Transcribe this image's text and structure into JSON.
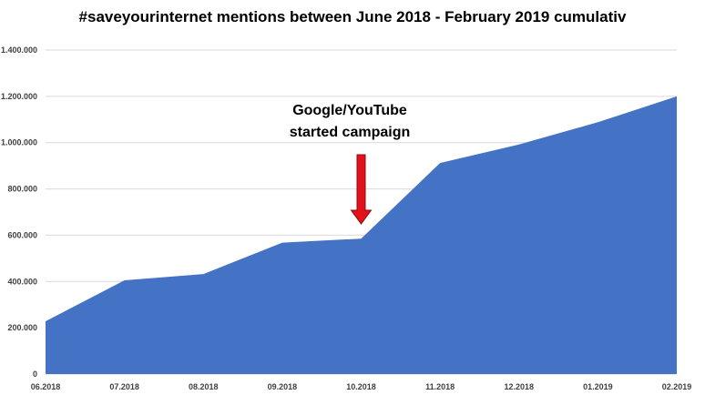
{
  "chart_data": {
    "type": "area",
    "title": "#saveyourinternet mentions between June 2018 - February 2019 cumulativ",
    "categories": [
      "06.2018",
      "07.2018",
      "08.2018",
      "09.2018",
      "10.2018",
      "11.2018",
      "12.2018",
      "01.2019",
      "02.2019"
    ],
    "series": [
      {
        "values": [
          228000,
          405000,
          432000,
          568000,
          585000,
          912000,
          992000,
          1088000,
          1200000
        ]
      }
    ],
    "y_ticks": [
      "0",
      "200.000",
      "400.000",
      "600.000",
      "800.000",
      "1.000.000",
      "1.200.000",
      "1.400.000"
    ],
    "ylim": [
      0,
      1400000
    ],
    "grid": true,
    "fill_color": "#4472C4",
    "grid_color": "#D9D9D9",
    "annotation": {
      "lines": [
        "Google/YouTube",
        "started campaign"
      ],
      "category": "10.2018",
      "arrow_color": "#E3111A"
    }
  }
}
